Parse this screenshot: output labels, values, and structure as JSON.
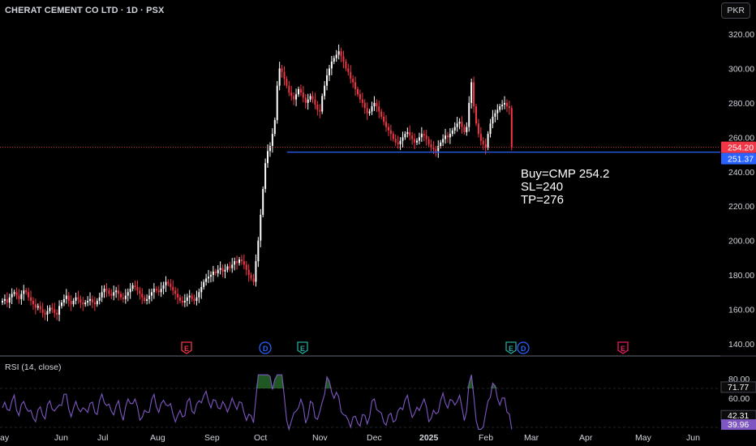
{
  "header": {
    "title": "CHERAT CEMENT CO LTD · 1D · PSX",
    "currency": "PKR"
  },
  "annotation": {
    "lines": [
      "Buy=CMP 254.2",
      "SL=240",
      "TP=276"
    ]
  },
  "colors": {
    "up": "#ffffff",
    "down": "#f23645",
    "support": "#2962ff",
    "rsi": "#7e57c2",
    "rsi_fill": "#2e7d32",
    "grid": "#131722",
    "divider": "#434651"
  },
  "chart_data": {
    "type": "candlestick",
    "price_axis": {
      "ticks": [
        140,
        160,
        180,
        200,
        220,
        240,
        260,
        280,
        300,
        320
      ],
      "tick_labels": [
        "140.00",
        "160.00",
        "180.00",
        "200.00",
        "220.00",
        "240.00",
        "260.00",
        "280.00",
        "300.00",
        "320.00"
      ],
      "range": [
        134,
        325
      ]
    },
    "time_axis": {
      "labels": [
        "ay",
        "Jun",
        "Jul",
        "Aug",
        "Sep",
        "Oct",
        "Nov",
        "Dec",
        "2025",
        "Feb",
        "Mar",
        "Apr",
        "May",
        "Jun"
      ]
    },
    "last_price": {
      "value": 254.2,
      "label": "254.20"
    },
    "support_level": {
      "value": 251.37,
      "label": "251.37"
    },
    "events": [
      {
        "month": "Aug",
        "letter": "E",
        "color": "#f23645"
      },
      {
        "month": "Oct",
        "letter": "D",
        "color": "#2962ff"
      },
      {
        "month": "Oct",
        "letter": "E",
        "color": "#26a69a"
      },
      {
        "month": "Feb",
        "letter": "E",
        "color": "#26a69a"
      },
      {
        "month": "Mar",
        "letter": "D",
        "color": "#2962ff"
      },
      {
        "month": "Apr",
        "letter": "E",
        "color": "#e91e63"
      }
    ],
    "rsi": {
      "label": "RSI (14, close)",
      "ticks": [
        "80.00",
        "60.00"
      ],
      "values": {
        "upper_band": "71.77",
        "lower_band": "42.31",
        "current": "39.96"
      }
    },
    "close_series": [
      165,
      166,
      164,
      167,
      169,
      170,
      168,
      166,
      169,
      171,
      170,
      167,
      165,
      163,
      161,
      162,
      160,
      158,
      157,
      159,
      161,
      160,
      158,
      157,
      162,
      164,
      166,
      168,
      165,
      163,
      165,
      167,
      166,
      164,
      163,
      164,
      165,
      166,
      164,
      163,
      165,
      167,
      170,
      172,
      171,
      169,
      168,
      170,
      171,
      169,
      167,
      166,
      168,
      170,
      172,
      174,
      173,
      171,
      169,
      167,
      165,
      166,
      168,
      170,
      172,
      171,
      170,
      172,
      174,
      176,
      175,
      173,
      171,
      169,
      167,
      165,
      164,
      165,
      167,
      168,
      166,
      165,
      167,
      170,
      173,
      176,
      178,
      179,
      180,
      182,
      181,
      183,
      184,
      182,
      183,
      185,
      184,
      186,
      188,
      187,
      189,
      188,
      186,
      183,
      180,
      178,
      176,
      188,
      200,
      215,
      230,
      245,
      252,
      255,
      262,
      270,
      290,
      300,
      298,
      294,
      290,
      286,
      284,
      282,
      285,
      288,
      286,
      283,
      280,
      282,
      284,
      282,
      279,
      276,
      275,
      284,
      290,
      296,
      300,
      304,
      306,
      308,
      310,
      307,
      304,
      300,
      298,
      294,
      292,
      288,
      285,
      282,
      280,
      277,
      274,
      275,
      278,
      280,
      278,
      275,
      272,
      269,
      266,
      264,
      262,
      259,
      257,
      256,
      258,
      260,
      262,
      263,
      261,
      259,
      257,
      258,
      260,
      262,
      261,
      259,
      256,
      254,
      253,
      252,
      255,
      257,
      259,
      261,
      260,
      262,
      264,
      266,
      268,
      269,
      266,
      263,
      266,
      280,
      292,
      278,
      268,
      262,
      258,
      256,
      254,
      262,
      268,
      272,
      274,
      276,
      278,
      279,
      280,
      278,
      277,
      254
    ]
  }
}
